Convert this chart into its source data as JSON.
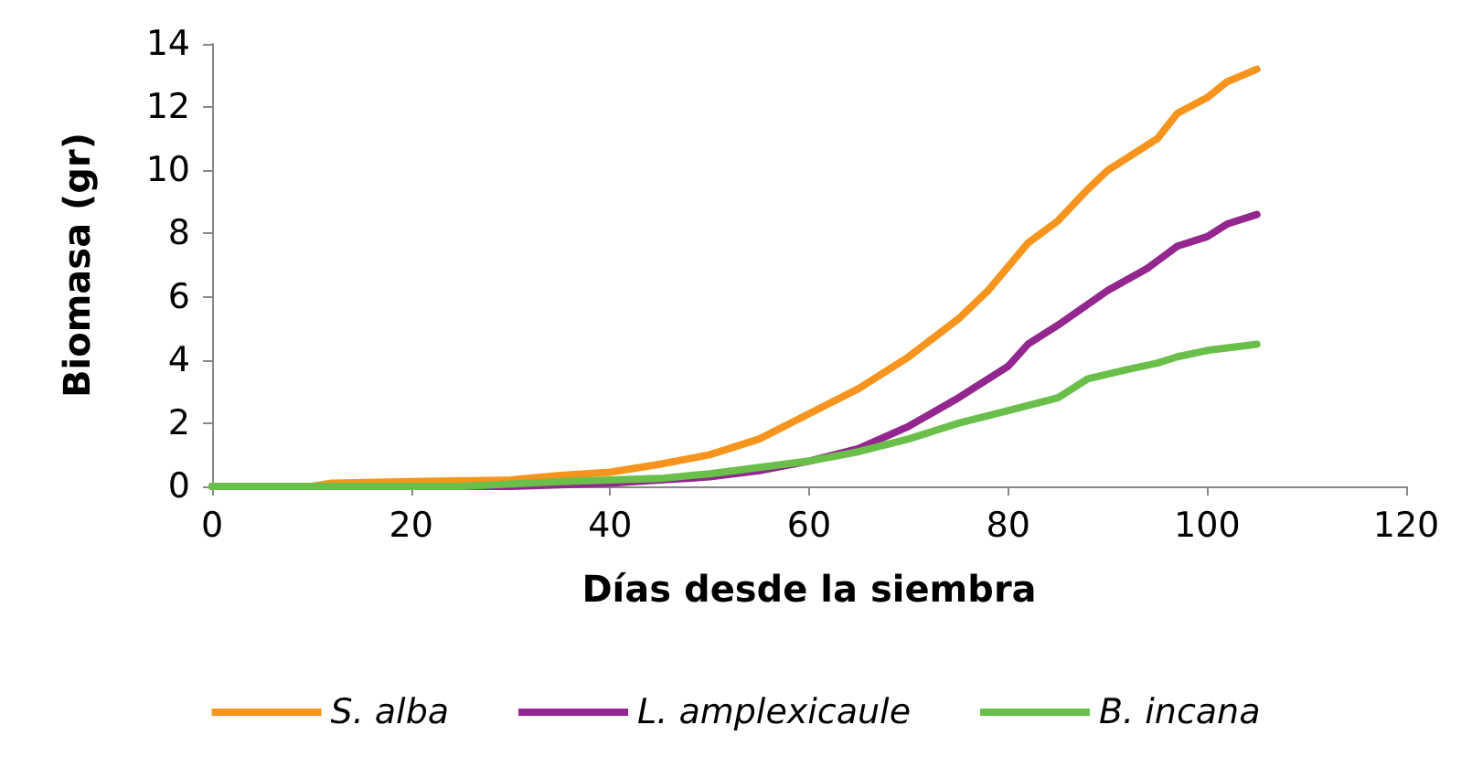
{
  "chart_data": {
    "type": "line",
    "xlabel": "Días desde la siembra",
    "ylabel": "Biomasa (gr)",
    "xlim": [
      0,
      120
    ],
    "xticks": [
      0,
      20,
      40,
      60,
      80,
      100,
      120
    ],
    "ylim": [
      0,
      14
    ],
    "yticks": [
      0,
      2,
      4,
      6,
      8,
      10,
      12,
      14
    ],
    "grid": false,
    "legend": "bottom",
    "marker": "none",
    "line_style": "solid",
    "series": [
      {
        "name": "S. alba",
        "color": "#f7941d",
        "x": [
          0,
          10,
          12,
          20,
          30,
          35,
          40,
          45,
          50,
          55,
          60,
          65,
          70,
          75,
          78,
          82,
          85,
          88,
          90,
          95,
          97,
          100,
          102,
          105
        ],
        "values": [
          0,
          0,
          0.1,
          0.15,
          0.2,
          0.35,
          0.45,
          0.7,
          1.0,
          1.5,
          2.3,
          3.1,
          4.1,
          5.3,
          6.2,
          7.7,
          8.4,
          9.4,
          10.0,
          11.0,
          11.8,
          12.3,
          12.8,
          13.2
        ]
      },
      {
        "name": "L. amplexicaule",
        "color": "#93278f",
        "x": [
          0,
          30,
          35,
          40,
          45,
          50,
          55,
          60,
          65,
          70,
          75,
          80,
          82,
          85,
          90,
          94,
          97,
          100,
          102,
          105
        ],
        "values": [
          0,
          0,
          0.05,
          0.1,
          0.2,
          0.3,
          0.5,
          0.8,
          1.2,
          1.9,
          2.8,
          3.8,
          4.5,
          5.1,
          6.2,
          6.9,
          7.6,
          7.9,
          8.3,
          8.6
        ]
      },
      {
        "name": "B. incana",
        "color": "#6abf4b",
        "x": [
          0,
          25,
          35,
          40,
          45,
          50,
          55,
          60,
          65,
          70,
          75,
          80,
          85,
          88,
          92,
          95,
          97,
          100,
          105
        ],
        "values": [
          0,
          0,
          0.15,
          0.2,
          0.25,
          0.4,
          0.6,
          0.8,
          1.1,
          1.5,
          2.0,
          2.4,
          2.8,
          3.4,
          3.7,
          3.9,
          4.1,
          4.3,
          4.5
        ]
      }
    ]
  }
}
